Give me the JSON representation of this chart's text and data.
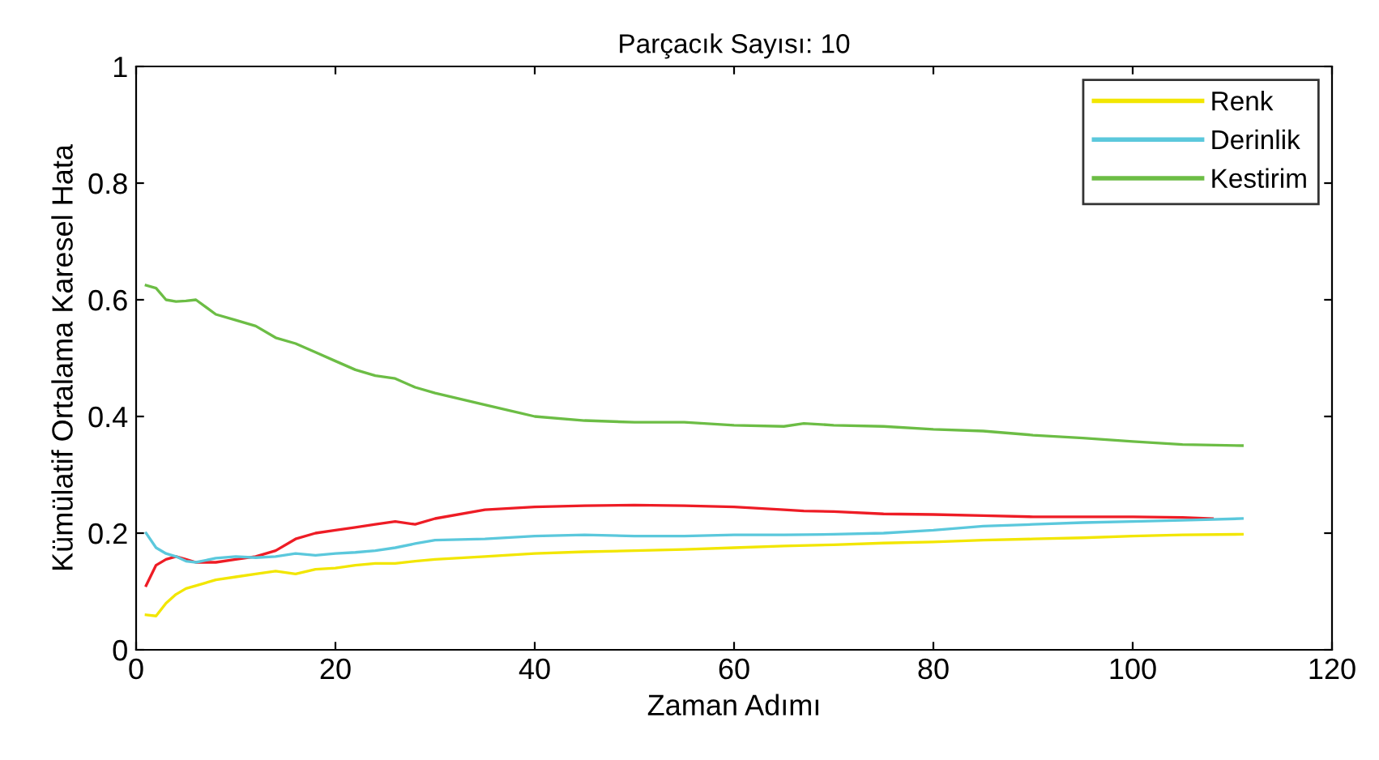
{
  "chart_data": {
    "type": "line",
    "title": "Parçacık Sayısı: 10",
    "xlabel": "Zaman Adımı",
    "ylabel": "Kümülatif Ortalama Karesel Hata",
    "xlim": [
      0,
      120
    ],
    "xticks": [
      0,
      20,
      40,
      60,
      80,
      100,
      120
    ],
    "ylim": [
      0,
      1
    ],
    "yticks": [
      0,
      0.2,
      0.4,
      0.6,
      0.8,
      1
    ],
    "legend": "top right",
    "grid": false,
    "marker": "none",
    "line_style": "solid",
    "series": [
      {
        "color": "#ee1c25",
        "x": [
          1,
          2,
          3,
          4,
          5,
          6,
          8,
          10,
          12,
          14,
          16,
          18,
          20,
          22,
          24,
          26,
          28,
          30,
          35,
          40,
          45,
          50,
          55,
          60,
          65,
          67,
          70,
          75,
          80,
          85,
          90,
          95,
          100,
          105,
          108
        ],
        "values": [
          0.11,
          0.145,
          0.155,
          0.16,
          0.155,
          0.15,
          0.15,
          0.155,
          0.16,
          0.17,
          0.19,
          0.2,
          0.205,
          0.21,
          0.215,
          0.22,
          0.215,
          0.225,
          0.24,
          0.245,
          0.247,
          0.248,
          0.247,
          0.245,
          0.24,
          0.238,
          0.237,
          0.233,
          0.232,
          0.23,
          0.228,
          0.228,
          0.228,
          0.227,
          0.225
        ]
      },
      {
        "name": "Renk",
        "color": "#f2e600",
        "x": [
          1,
          2,
          3,
          4,
          5,
          6,
          8,
          10,
          12,
          14,
          16,
          18,
          20,
          22,
          24,
          26,
          28,
          30,
          35,
          40,
          45,
          50,
          55,
          60,
          65,
          70,
          75,
          80,
          85,
          90,
          95,
          100,
          105,
          111
        ],
        "values": [
          0.06,
          0.058,
          0.08,
          0.095,
          0.105,
          0.11,
          0.12,
          0.125,
          0.13,
          0.135,
          0.13,
          0.138,
          0.14,
          0.145,
          0.148,
          0.148,
          0.152,
          0.155,
          0.16,
          0.165,
          0.168,
          0.17,
          0.172,
          0.175,
          0.178,
          0.18,
          0.183,
          0.185,
          0.188,
          0.19,
          0.192,
          0.195,
          0.197,
          0.198
        ]
      },
      {
        "name": "Derinlik",
        "color": "#5bc8dc",
        "x": [
          1,
          2,
          3,
          4,
          5,
          6,
          8,
          10,
          12,
          14,
          16,
          18,
          20,
          22,
          24,
          26,
          28,
          30,
          35,
          40,
          45,
          50,
          55,
          60,
          65,
          70,
          75,
          80,
          85,
          90,
          95,
          100,
          105,
          111
        ],
        "values": [
          0.2,
          0.175,
          0.165,
          0.16,
          0.152,
          0.15,
          0.157,
          0.16,
          0.158,
          0.16,
          0.165,
          0.162,
          0.165,
          0.167,
          0.17,
          0.175,
          0.182,
          0.188,
          0.19,
          0.195,
          0.197,
          0.195,
          0.195,
          0.197,
          0.197,
          0.198,
          0.2,
          0.205,
          0.212,
          0.215,
          0.218,
          0.22,
          0.222,
          0.225
        ]
      },
      {
        "name": "Kestirim",
        "color": "#6cbd45",
        "x": [
          1,
          2,
          3,
          4,
          5,
          6,
          8,
          10,
          12,
          14,
          16,
          18,
          20,
          22,
          24,
          26,
          28,
          30,
          35,
          40,
          45,
          50,
          55,
          60,
          65,
          67,
          70,
          75,
          80,
          85,
          90,
          95,
          100,
          105,
          111
        ],
        "values": [
          0.625,
          0.62,
          0.6,
          0.597,
          0.598,
          0.6,
          0.575,
          0.565,
          0.555,
          0.535,
          0.525,
          0.51,
          0.495,
          0.48,
          0.47,
          0.465,
          0.45,
          0.44,
          0.42,
          0.4,
          0.393,
          0.39,
          0.39,
          0.385,
          0.383,
          0.388,
          0.385,
          0.383,
          0.378,
          0.375,
          0.368,
          0.363,
          0.357,
          0.352,
          0.35
        ]
      }
    ]
  }
}
